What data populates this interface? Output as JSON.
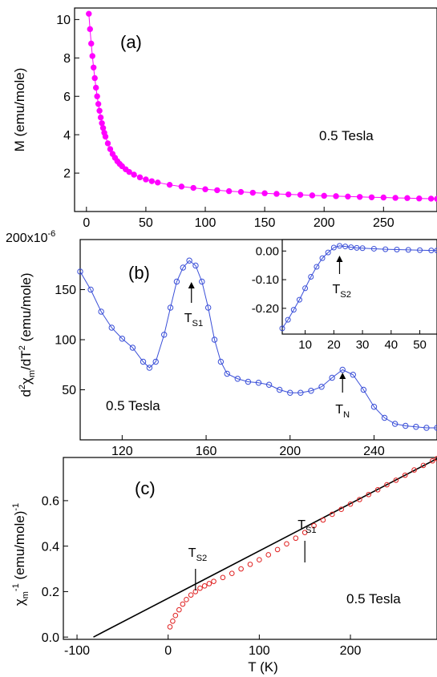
{
  "chart_data": [
    {
      "type": "scatter",
      "panel_label": "(a)",
      "ylabel": "M (emu/mole)",
      "xlabel": "",
      "annotation": "0.5 Tesla",
      "xlim": [
        -10,
        295
      ],
      "ylim": [
        0,
        10.6
      ],
      "xticks": [
        0,
        50,
        100,
        150,
        200,
        250
      ],
      "yticks": [
        2,
        4,
        6,
        8,
        10
      ],
      "series": [
        {
          "color": "#ff00ff",
          "marker": "filled-circle",
          "line": true,
          "x": [
            2,
            3,
            4,
            5,
            6,
            7,
            8,
            9,
            10,
            11,
            12,
            13,
            14,
            15,
            16,
            18,
            20,
            22,
            24,
            26,
            28,
            30,
            33,
            36,
            40,
            45,
            50,
            55,
            60,
            70,
            80,
            90,
            100,
            110,
            120,
            130,
            140,
            150,
            160,
            170,
            180,
            190,
            200,
            210,
            220,
            230,
            240,
            250,
            260,
            270,
            280,
            290,
            295
          ],
          "y": [
            10.3,
            9.5,
            8.75,
            8.1,
            7.5,
            6.95,
            6.45,
            6.0,
            5.6,
            5.25,
            4.9,
            4.6,
            4.35,
            4.1,
            3.9,
            3.55,
            3.25,
            3.0,
            2.8,
            2.62,
            2.48,
            2.36,
            2.2,
            2.06,
            1.92,
            1.78,
            1.67,
            1.58,
            1.51,
            1.39,
            1.3,
            1.23,
            1.16,
            1.11,
            1.06,
            1.02,
            0.98,
            0.95,
            0.92,
            0.89,
            0.87,
            0.84,
            0.82,
            0.8,
            0.78,
            0.76,
            0.74,
            0.73,
            0.71,
            0.7,
            0.68,
            0.67,
            0.66
          ]
        }
      ]
    },
    {
      "type": "scatter",
      "panel_label": "(b)",
      "ylabel": "d²χm/dT² (emu/mole)",
      "ytick_exponent": "200x10⁻⁶",
      "xlabel": "",
      "annotation": "0.5 Tesla",
      "markers": [
        {
          "label": "TS1",
          "main": "T",
          "sub": "S1",
          "x": 153
        },
        {
          "label": "TN",
          "main": "T",
          "sub": "N",
          "x": 225
        }
      ],
      "xlim": [
        100,
        270
      ],
      "ylim": [
        0,
        200
      ],
      "xticks": [
        120,
        160,
        200,
        240
      ],
      "yticks": [
        50,
        100,
        150
      ],
      "series": [
        {
          "color": "#3a4fd8",
          "marker": "open-circle",
          "line": true,
          "x": [
            100,
            105,
            110,
            115,
            120,
            125,
            130,
            133,
            136,
            140,
            143,
            146,
            149,
            152,
            155,
            158,
            161,
            164,
            167,
            170,
            175,
            180,
            185,
            190,
            195,
            200,
            205,
            210,
            215,
            220,
            225,
            230,
            235,
            240,
            245,
            250,
            255,
            260,
            265,
            270
          ],
          "y": [
            168,
            150,
            128,
            112,
            101,
            92,
            78,
            72,
            78,
            105,
            132,
            158,
            172,
            179,
            174,
            158,
            132,
            100,
            78,
            66,
            61,
            58,
            57,
            55,
            50,
            47,
            47,
            49,
            53,
            62,
            70,
            65,
            50,
            33,
            22,
            16,
            14,
            13,
            12,
            12
          ]
        }
      ],
      "inset": {
        "xlim": [
          2,
          56
        ],
        "ylim": [
          -0.29,
          0.04
        ],
        "xticks": [
          10,
          20,
          30,
          40,
          50
        ],
        "yticks": [
          0.0,
          -0.1,
          -0.2
        ],
        "ytick_labels": [
          "0.00",
          "-0.10",
          "-0.20"
        ],
        "marker": {
          "label": "TS2",
          "main": "T",
          "sub": "S2",
          "x": 22
        },
        "series": [
          {
            "color": "#3a4fd8",
            "marker": "open-circle",
            "line": true,
            "x": [
              2,
              4,
              6,
              8,
              10,
              12,
              14,
              16,
              18,
              20,
              22,
              24,
              26,
              28,
              30,
              34,
              38,
              42,
              46,
              50,
              54,
              56
            ],
            "y": [
              -0.27,
              -0.24,
              -0.205,
              -0.17,
              -0.13,
              -0.09,
              -0.055,
              -0.025,
              -0.005,
              0.012,
              0.018,
              0.016,
              0.013,
              0.011,
              0.01,
              0.008,
              0.006,
              0.005,
              0.004,
              0.003,
              0.002,
              0.002
            ]
          }
        ]
      }
    },
    {
      "type": "scatter",
      "panel_label": "(c)",
      "ylabel": "χm⁻¹ (emu/mole)⁻¹",
      "xlabel": "T (K)",
      "annotation": "0.5 Tesla",
      "markers": [
        {
          "label": "TS1",
          "main": "T",
          "sub": "S1",
          "x": 150
        },
        {
          "label": "TS2",
          "main": "T",
          "sub": "S2",
          "x": 30
        }
      ],
      "xlim": [
        -115,
        295
      ],
      "ylim": [
        -0.01,
        0.79
      ],
      "xticks": [
        -100,
        0,
        100,
        200
      ],
      "yticks": [
        0.0,
        0.2,
        0.4,
        0.6
      ],
      "ytick_labels": [
        "0.0",
        "0.2",
        "0.4",
        "0.6"
      ],
      "series": [
        {
          "color": "#000000",
          "marker": "none",
          "line": true,
          "x": [
            -82,
            295
          ],
          "y": [
            0.0,
            0.785
          ]
        },
        {
          "color": "#e02020",
          "marker": "open-circle",
          "line": false,
          "x": [
            2,
            5,
            8,
            12,
            16,
            20,
            25,
            30,
            35,
            40,
            45,
            50,
            60,
            70,
            80,
            90,
            100,
            110,
            120,
            130,
            140,
            150,
            160,
            170,
            180,
            190,
            200,
            210,
            220,
            230,
            240,
            250,
            260,
            270,
            280,
            290,
            295
          ],
          "y": [
            0.045,
            0.07,
            0.095,
            0.12,
            0.145,
            0.165,
            0.185,
            0.2,
            0.215,
            0.225,
            0.235,
            0.245,
            0.262,
            0.28,
            0.3,
            0.32,
            0.34,
            0.362,
            0.385,
            0.41,
            0.435,
            0.46,
            0.49,
            0.515,
            0.54,
            0.562,
            0.585,
            0.605,
            0.627,
            0.648,
            0.67,
            0.69,
            0.712,
            0.735,
            0.755,
            0.775,
            0.785
          ]
        }
      ]
    }
  ]
}
